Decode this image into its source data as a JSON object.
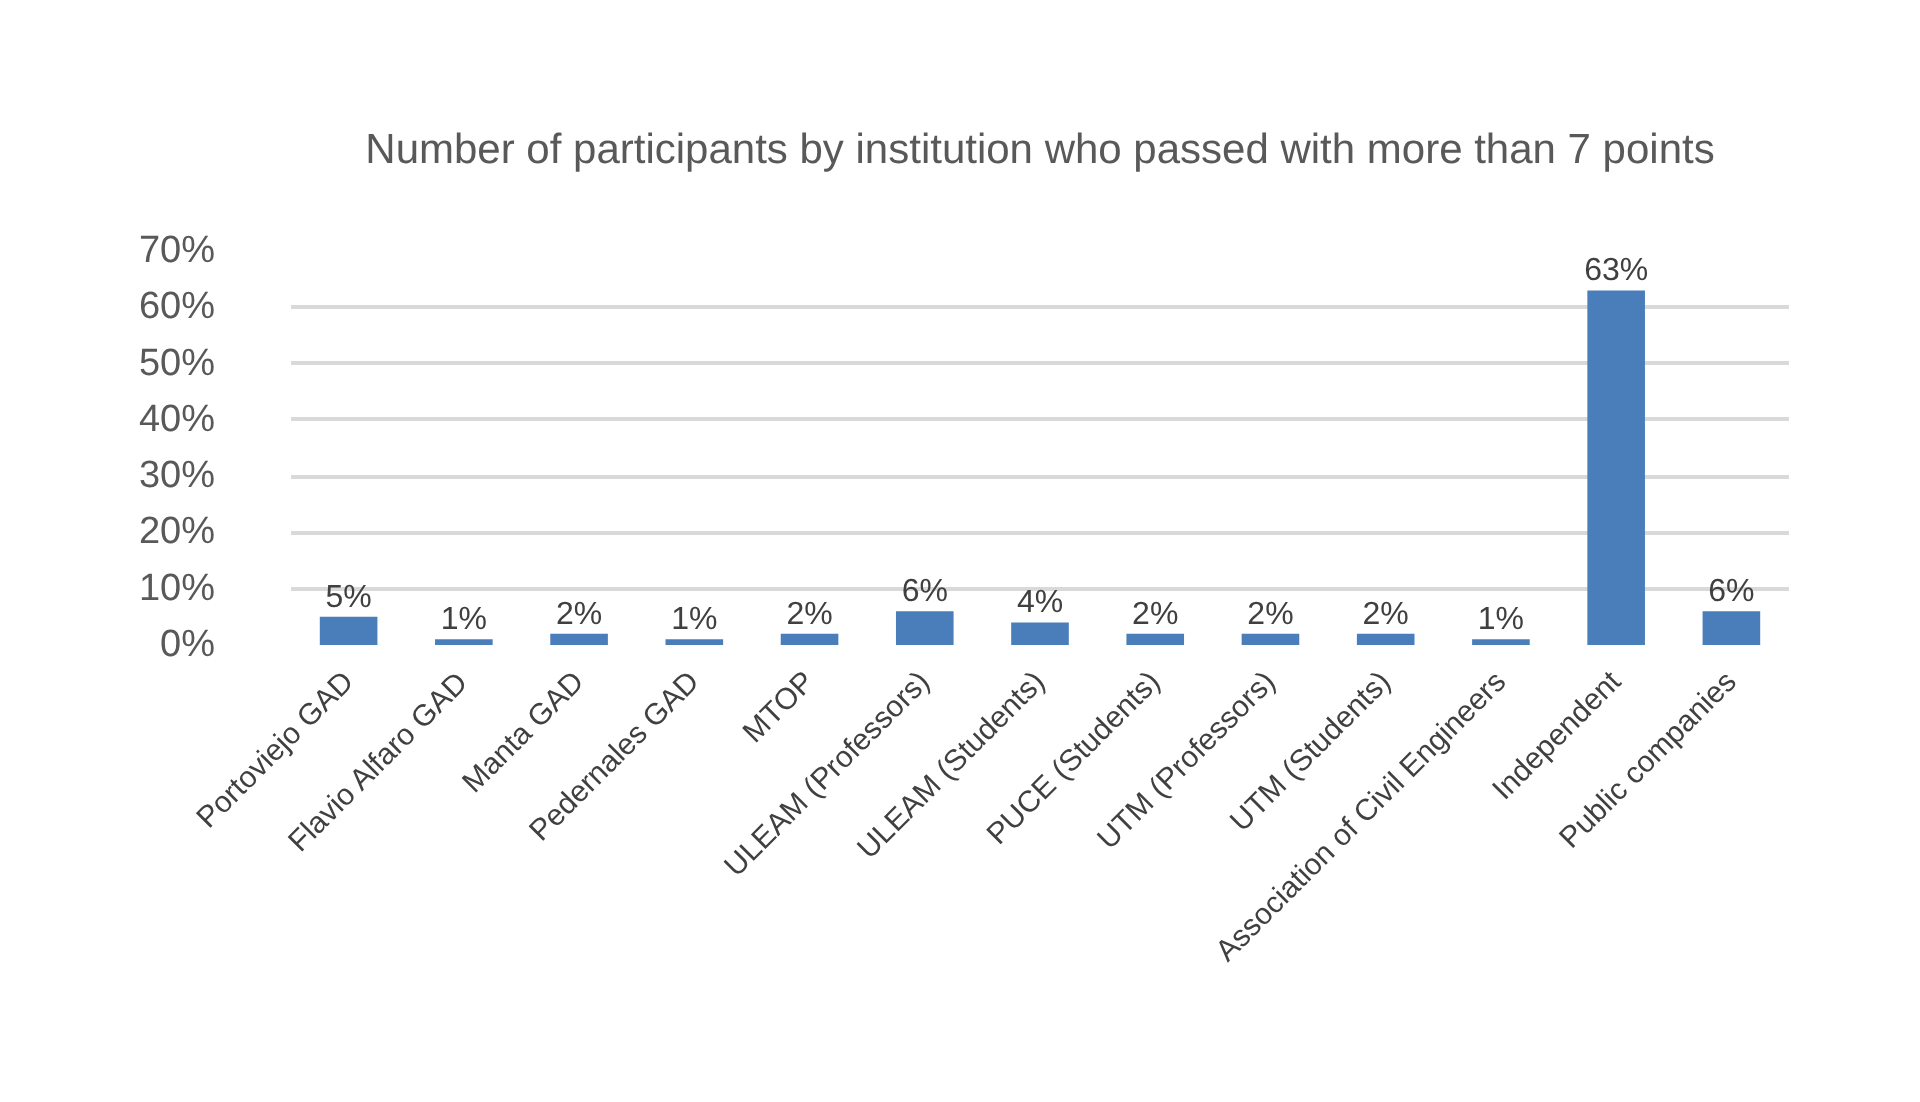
{
  "chart_data": {
    "type": "bar",
    "title": "Number of participants by institution who passed with more than 7 points",
    "categories": [
      "Portoviejo GAD",
      "Flavio Alfaro GAD",
      "Manta GAD",
      "Pedernales GAD",
      "MTOP",
      "ULEAM (Professors)",
      "ULEAM (Students)",
      "PUCE (Students)",
      "UTM (Professors)",
      "UTM (Students)",
      "Association of Civil Engineers",
      "Independent",
      "Public companies"
    ],
    "values": [
      5,
      1,
      2,
      1,
      2,
      6,
      4,
      2,
      2,
      2,
      1,
      63,
      6
    ],
    "color": "#4a7ebb",
    "value_labels": [
      "5%",
      "1%",
      "2%",
      "1%",
      "2%",
      "6%",
      "4%",
      "2%",
      "2%",
      "2%",
      "1%",
      "63%",
      "6%"
    ],
    "ylim": [
      0,
      70
    ],
    "yticks": [
      {
        "value": 0,
        "label": "0%"
      },
      {
        "value": 10,
        "label": "10%"
      },
      {
        "value": 20,
        "label": "20%"
      },
      {
        "value": 30,
        "label": "30%"
      },
      {
        "value": 40,
        "label": "40%"
      },
      {
        "value": 50,
        "label": "50%"
      },
      {
        "value": 60,
        "label": "60%"
      },
      {
        "value": 70,
        "label": "70%"
      }
    ],
    "grid": "y"
  }
}
